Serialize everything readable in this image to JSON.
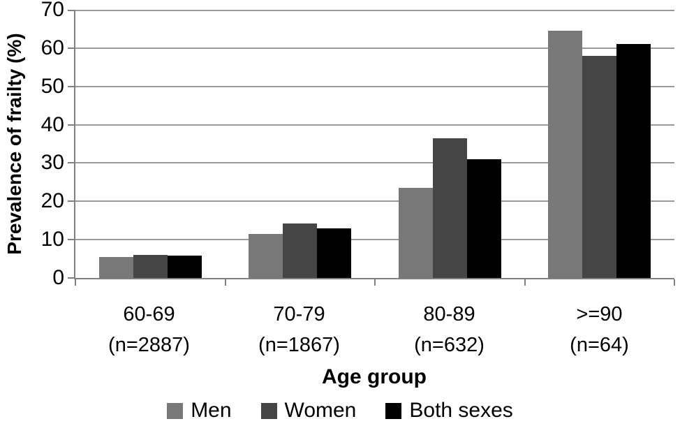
{
  "chart_data": {
    "type": "bar",
    "title": "",
    "xlabel": "Age group",
    "ylabel": "Prevalence of frailty (%)",
    "ylim": [
      0,
      70
    ],
    "yticks": [
      0,
      10,
      20,
      30,
      40,
      50,
      60,
      70
    ],
    "grid": "horizontal",
    "legend_position": "bottom-center",
    "categories": [
      "60-69",
      "70-79",
      "80-89",
      ">=90"
    ],
    "category_sublabels": [
      "(n=2887)",
      "(n=1867)",
      "(n=632)",
      "(n=64)"
    ],
    "series": [
      {
        "name": "Men",
        "color": "#787878",
        "values": [
          5.5,
          11.5,
          23.5,
          64.5
        ]
      },
      {
        "name": "Women",
        "color": "#454545",
        "values": [
          6.0,
          14.3,
          36.5,
          58.0
        ]
      },
      {
        "name": "Both sexes",
        "color": "#000000",
        "values": [
          5.8,
          13.0,
          31.0,
          61.0
        ]
      }
    ],
    "colors": {
      "gridline": "#9a9a9a",
      "axis": "#808080",
      "background": "#ffffff",
      "text": "#000000"
    }
  }
}
